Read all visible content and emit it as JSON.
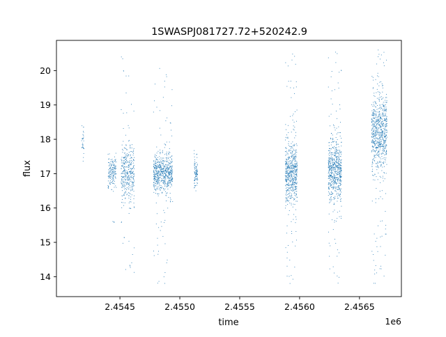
{
  "chart_data": {
    "type": "scatter",
    "title": "1SWASPJ081727.72+520242.9",
    "xlabel": "time",
    "ylabel": "flux",
    "x_offset_label": "1e6",
    "xlim": [
      2.45397,
      2.45685
    ],
    "ylim": [
      13.42,
      20.88
    ],
    "x_ticks": [
      2.4545,
      2.455,
      2.4555,
      2.456,
      2.4565
    ],
    "x_tick_labels": [
      "2.4545",
      "2.4550",
      "2.4555",
      "2.4560",
      "2.4565"
    ],
    "y_ticks": [
      14,
      15,
      16,
      17,
      18,
      19,
      20
    ],
    "y_tick_labels": [
      "14",
      "15",
      "16",
      "17",
      "18",
      "19",
      "20"
    ],
    "grid": false,
    "legend": "none",
    "marker_color": "#1f77b4",
    "series": [
      {
        "clusters": [
          {
            "x_range": [
              2.45418,
              2.4542
            ],
            "y_center": 17.95,
            "y_spread": 0.28,
            "y_min": 17.2,
            "y_max": 18.6,
            "n_points": 30
          },
          {
            "x_range": [
              2.4544,
              2.45447
            ],
            "y_center": 17.05,
            "y_spread": 0.22,
            "y_min": 15.3,
            "y_max": 18.4,
            "n_points": 160
          },
          {
            "x_range": [
              2.45451,
              2.45462
            ],
            "y_center": 17.0,
            "y_spread": 0.4,
            "y_min": 13.7,
            "y_max": 20.6,
            "n_points": 380
          },
          {
            "x_range": [
              2.45478,
              2.45494
            ],
            "y_center": 17.0,
            "y_spread": 0.28,
            "y_min": 13.8,
            "y_max": 20.5,
            "n_points": 650
          },
          {
            "x_range": [
              2.45512,
              2.45515
            ],
            "y_center": 17.05,
            "y_spread": 0.22,
            "y_min": 16.5,
            "y_max": 17.8,
            "n_points": 90
          },
          {
            "x_range": [
              2.45588,
              2.45598
            ],
            "y_center": 17.0,
            "y_spread": 0.45,
            "y_min": 13.8,
            "y_max": 20.5,
            "n_points": 600
          },
          {
            "x_range": [
              2.45624,
              2.45635
            ],
            "y_center": 17.1,
            "y_spread": 0.45,
            "y_min": 13.7,
            "y_max": 20.6,
            "n_points": 650
          },
          {
            "x_range": [
              2.4566,
              2.45673
            ],
            "y_center": 18.2,
            "y_spread": 0.55,
            "y_min": 13.8,
            "y_max": 20.6,
            "n_points": 750
          }
        ]
      }
    ]
  }
}
